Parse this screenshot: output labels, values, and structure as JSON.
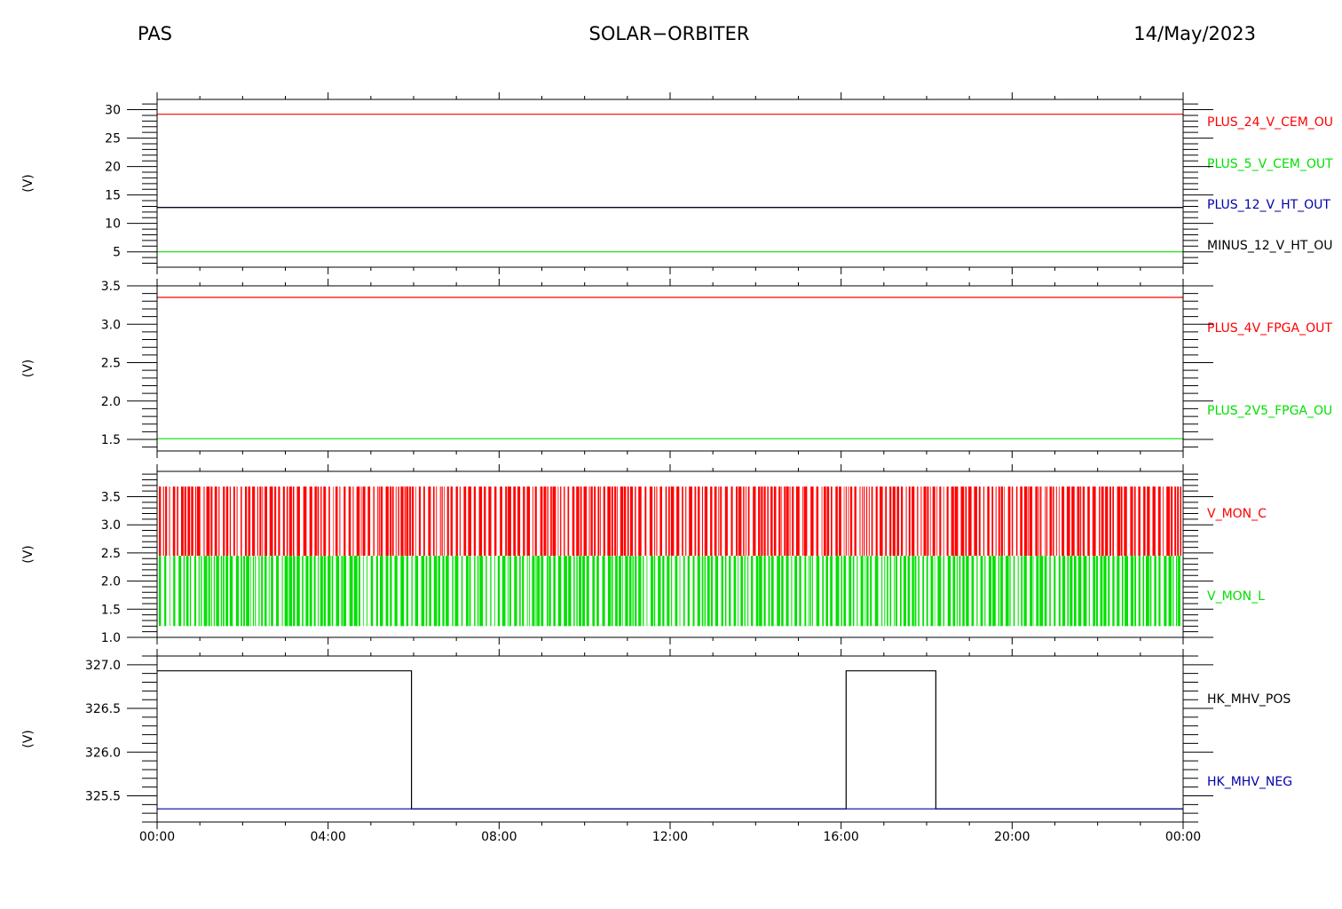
{
  "header": {
    "instrument": "PAS",
    "mission": "SOLAR−ORBITER",
    "date": "14/May/2023"
  },
  "chart_data": [
    {
      "type": "line",
      "ylabel": "(V)",
      "ylim": [
        2.3,
        31.8
      ],
      "yticks": [
        5,
        10,
        15,
        20,
        25,
        30
      ],
      "ytick_labels": [
        "5",
        "10",
        "15",
        "20",
        "25",
        "30"
      ],
      "ytick_minor": 1,
      "x": [
        "00:00",
        "24:00"
      ],
      "series": [
        {
          "name": "PLUS_24_V_CEM_OUT",
          "label_visible": "PLUS_24_V_CEM_OU",
          "color": "#ff0000",
          "values": [
            29.2,
            29.2
          ]
        },
        {
          "name": "PLUS_5_V_CEM_OUT",
          "label_visible": "PLUS_5_V_CEM_OUT",
          "color": "#00e000",
          "values": [
            5.0,
            5.0
          ]
        },
        {
          "name": "PLUS_12_V_HT_OUT",
          "label_visible": "PLUS_12_V_HT_OUT",
          "color": "#0000aa",
          "values": [
            12.8,
            12.8
          ]
        },
        {
          "name": "MINUS_12_V_HT_OUT",
          "label_visible": "MINUS_12_V_HT_OU",
          "color": "#000000",
          "values": [
            12.8,
            12.8
          ]
        }
      ]
    },
    {
      "type": "line",
      "ylabel": "(V)",
      "ylim": [
        1.35,
        3.5
      ],
      "yticks": [
        1.5,
        2.0,
        2.5,
        3.0,
        3.5
      ],
      "ytick_labels": [
        "1.5",
        "2.0",
        "2.5",
        "3.0",
        "3.5"
      ],
      "ytick_minor": 0.1,
      "x": [
        "00:00",
        "24:00"
      ],
      "series": [
        {
          "name": "PLUS_4V_FPGA_OUT",
          "label_visible": "PLUS_4V_FPGA_OUT",
          "color": "#ff0000",
          "values": [
            3.35,
            3.35
          ]
        },
        {
          "name": "PLUS_2V5_FPGA_OUT",
          "label_visible": "PLUS_2V5_FPGA_OU",
          "color": "#00e000",
          "values": [
            1.51,
            1.51
          ]
        }
      ]
    },
    {
      "type": "line",
      "ylabel": "(V)",
      "ylim": [
        1.0,
        3.95
      ],
      "yticks": [
        1.0,
        1.5,
        2.0,
        2.5,
        3.0,
        3.5
      ],
      "ytick_labels": [
        "1.0",
        "1.5",
        "2.0",
        "2.5",
        "3.0",
        "3.5"
      ],
      "ytick_minor": 0.1,
      "x": [
        "00:00",
        "24:00"
      ],
      "series": [
        {
          "name": "V_MON_C",
          "label_visible": "V_MON_C",
          "color": "#ff0000",
          "low": 2.45,
          "high": 3.68,
          "note": "rapid toggling between low and high"
        },
        {
          "name": "V_MON_L",
          "label_visible": "V_MON_L",
          "color": "#00e000",
          "low": 1.2,
          "high": 2.45,
          "note": "rapid toggling between low and high"
        }
      ]
    },
    {
      "type": "line",
      "ylabel": "(V)",
      "ylim": [
        325.2,
        327.1
      ],
      "yticks": [
        325.5,
        326.0,
        326.5,
        327.0
      ],
      "ytick_labels": [
        "325.5",
        "326.0",
        "326.5",
        "327.0"
      ],
      "ytick_minor": 0.1,
      "series": [
        {
          "name": "HK_MHV_POS",
          "label_visible": "HK_MHV_POS",
          "color": "#000000",
          "x": [
            "00:00",
            "05:57",
            "05:57",
            "16:07",
            "16:07",
            "18:13",
            "18:13",
            "24:00"
          ],
          "values": [
            326.93,
            326.93,
            325.35,
            325.35,
            326.93,
            326.93,
            325.35,
            325.35
          ]
        },
        {
          "name": "HK_MHV_NEG",
          "label_visible": "HK_MHV_NEG",
          "color": "#0000aa",
          "x": [
            "00:00",
            "24:00"
          ],
          "values": [
            325.35,
            325.35
          ]
        }
      ]
    }
  ],
  "xaxis": {
    "range": [
      "00:00",
      "24:00"
    ],
    "tick_labels": [
      "00:00",
      "04:00",
      "08:00",
      "12:00",
      "16:00",
      "20:00",
      "00:00"
    ],
    "major_step_hours": 4,
    "minor_step_hours": 1
  }
}
